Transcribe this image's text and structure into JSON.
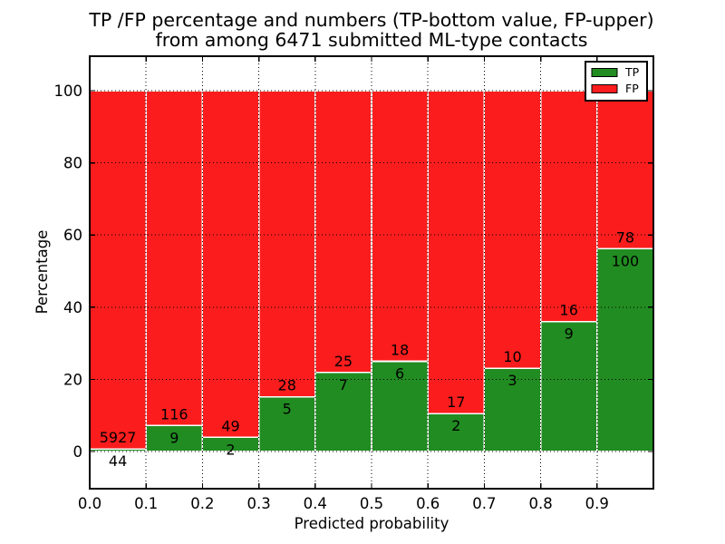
{
  "title": {
    "line1": "TP /FP percentage and numbers (TP-bottom value, FP-upper)",
    "line2": "from among 6471 submitted ML-type contacts"
  },
  "axes": {
    "xlabel": "Predicted probability",
    "ylabel": "Percentage",
    "x_tick_labels": [
      "0.0",
      "0.1",
      "0.2",
      "0.3",
      "0.4",
      "0.5",
      "0.6",
      "0.7",
      "0.8",
      "0.9"
    ],
    "y_tick_labels": [
      "0",
      "20",
      "40",
      "60",
      "80",
      "100"
    ],
    "xlim": [
      0.0,
      1.0
    ],
    "ylim": [
      -10.3,
      109.5
    ],
    "grid_style": "dotted"
  },
  "legend": {
    "position": "upper-right",
    "items": [
      {
        "label": "TP",
        "color": "#218c21"
      },
      {
        "label": "FP",
        "color": "#fb1d1d"
      }
    ]
  },
  "chart_data": {
    "type": "bar",
    "stacked": true,
    "percent_stacked": true,
    "title": "TP /FP percentage and numbers (TP-bottom value, FP-upper) from among 6471 submitted ML-type contacts",
    "xlabel": "Predicted probability",
    "ylabel": "Percentage",
    "total_contacts": 6471,
    "bin_start": [
      0.0,
      0.1,
      0.2,
      0.3,
      0.4,
      0.5,
      0.6,
      0.7,
      0.8,
      0.9
    ],
    "bin_width": 0.1,
    "series": [
      {
        "name": "TP",
        "color": "#218c21",
        "counts": [
          44,
          9,
          2,
          5,
          7,
          6,
          2,
          3,
          9,
          100
        ],
        "percent": [
          0.74,
          7.2,
          3.92,
          15.15,
          21.88,
          25.0,
          10.53,
          23.08,
          36.0,
          56.18
        ]
      },
      {
        "name": "FP",
        "color": "#fb1d1d",
        "counts": [
          5927,
          116,
          49,
          28,
          25,
          18,
          17,
          10,
          16,
          78
        ],
        "percent": [
          99.26,
          92.8,
          96.08,
          84.85,
          78.12,
          75.0,
          89.47,
          76.92,
          64.0,
          43.82
        ]
      }
    ],
    "grid": "dotted black, drawn above bars",
    "legend_position": "upper right"
  }
}
